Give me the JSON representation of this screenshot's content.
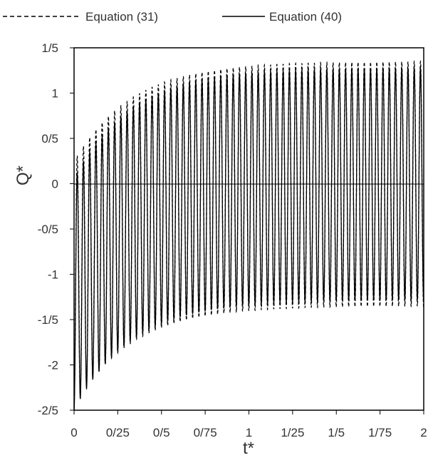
{
  "chart_data": {
    "type": "line",
    "title": "",
    "xlabel": "t*",
    "ylabel": "Q*",
    "xlim": [
      0,
      2
    ],
    "ylim": [
      -2.5,
      1.5
    ],
    "x_ticks": [
      0,
      0.25,
      0.5,
      0.75,
      1,
      1.25,
      1.5,
      1.75,
      2
    ],
    "x_tick_labels": [
      "0",
      "0/25",
      "0/5",
      "0/75",
      "1",
      "1/25",
      "1/5",
      "1/75",
      "2"
    ],
    "y_ticks": [
      1.5,
      1,
      0.5,
      0,
      -0.5,
      -1,
      -1.5,
      -2,
      -2.5
    ],
    "y_tick_labels": [
      "1/5",
      "1",
      "0/5",
      "0",
      "-0/5",
      "-1",
      "-1/5",
      "-2",
      "-2/5"
    ],
    "grid": false,
    "legend": "top",
    "oscillation_period": 0.0357,
    "series": [
      {
        "name": "Equation (31)",
        "style": "dashed",
        "color": "#000000",
        "steady_max": 1.35,
        "steady_min": -1.35,
        "initial_value": -2.45,
        "decay_time": 0.33
      },
      {
        "name": "Equation (40)",
        "style": "solid",
        "color": "#000000",
        "steady_max": 1.28,
        "steady_min": -1.28,
        "initial_value": -2.5,
        "decay_time": 0.33
      }
    ]
  }
}
